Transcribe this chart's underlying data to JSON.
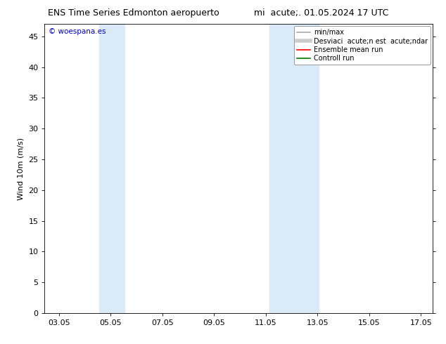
{
  "title_left": "ENS Time Series Edmonton aeropuerto",
  "title_right": "mi  acute;. 01.05.2024 17 UTC",
  "ylabel": "Wind 10m (m/s)",
  "xlabel_ticks": [
    "03.05",
    "05.05",
    "07.05",
    "09.05",
    "11.05",
    "13.05",
    "15.05",
    "17.05"
  ],
  "xlabel_tick_positions": [
    3.05,
    5.05,
    7.05,
    9.05,
    11.05,
    13.05,
    15.05,
    17.05
  ],
  "xlim": [
    2.5,
    17.5
  ],
  "ylim": [
    0,
    47
  ],
  "yticks": [
    0,
    5,
    10,
    15,
    20,
    25,
    30,
    35,
    40,
    45
  ],
  "shaded_bands": [
    {
      "xmin": 4.6,
      "xmax": 5.6
    },
    {
      "xmin": 11.2,
      "xmax": 13.1
    }
  ],
  "band_color": "#daeaf8",
  "bg_color": "#ffffff",
  "watermark": "© woespana.es",
  "watermark_color": "#0000cc",
  "legend_entries": [
    {
      "label": "min/max",
      "color": "#aaaaaa",
      "lw": 1.2
    },
    {
      "label": "Desviaci  acute;n est  acute;ndar",
      "color": "#cccccc",
      "lw": 4
    },
    {
      "label": "Ensemble mean run",
      "color": "#ff0000",
      "lw": 1.2
    },
    {
      "label": "Controll run",
      "color": "#007700",
      "lw": 1.2
    }
  ],
  "title_fontsize": 9,
  "tick_fontsize": 8,
  "ylabel_fontsize": 8,
  "watermark_fontsize": 7.5,
  "legend_fontsize": 7
}
